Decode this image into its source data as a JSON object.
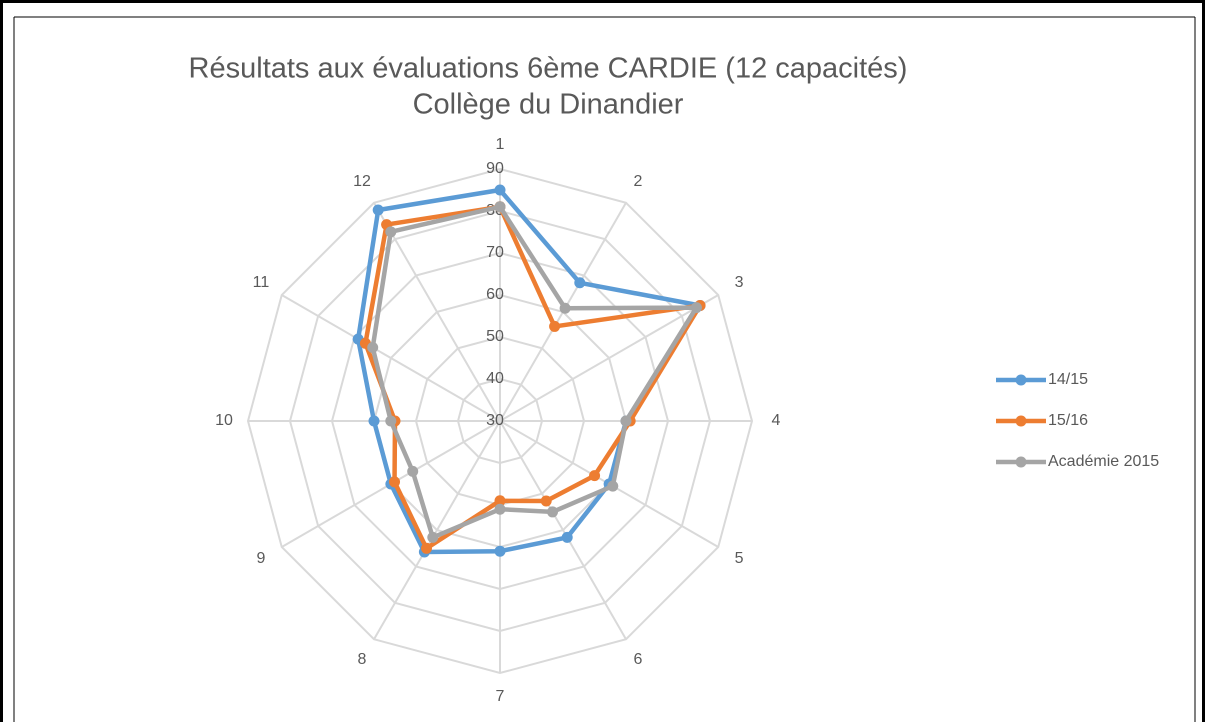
{
  "chart_data": {
    "type": "radar",
    "title": [
      "Résultats aux évaluations 6ème CARDIE (12 capacités)",
      "Collège du Dinandier"
    ],
    "categories": [
      "1",
      "2",
      "3",
      "4",
      "5",
      "6",
      "7",
      "8",
      "9",
      "10",
      "11",
      "12"
    ],
    "series": [
      {
        "name": "14/15",
        "color": "#5b9bd5",
        "values": [
          85,
          68,
          85,
          60,
          60,
          62,
          61,
          66,
          60,
          60,
          69,
          88
        ]
      },
      {
        "name": "15/16",
        "color": "#ed7d31",
        "values": [
          81,
          56,
          85,
          61,
          56,
          52,
          49,
          65,
          59,
          55,
          67,
          84
        ]
      },
      {
        "name": "Académie 2015",
        "color": "#a5a5a5",
        "values": [
          81,
          61,
          84,
          60,
          61,
          55,
          51,
          62,
          54,
          56,
          65,
          82
        ]
      }
    ],
    "ylim": [
      30,
      90
    ],
    "yticks": [
      30,
      40,
      50,
      60,
      70,
      80,
      90
    ],
    "grid": true,
    "legend": "right"
  }
}
